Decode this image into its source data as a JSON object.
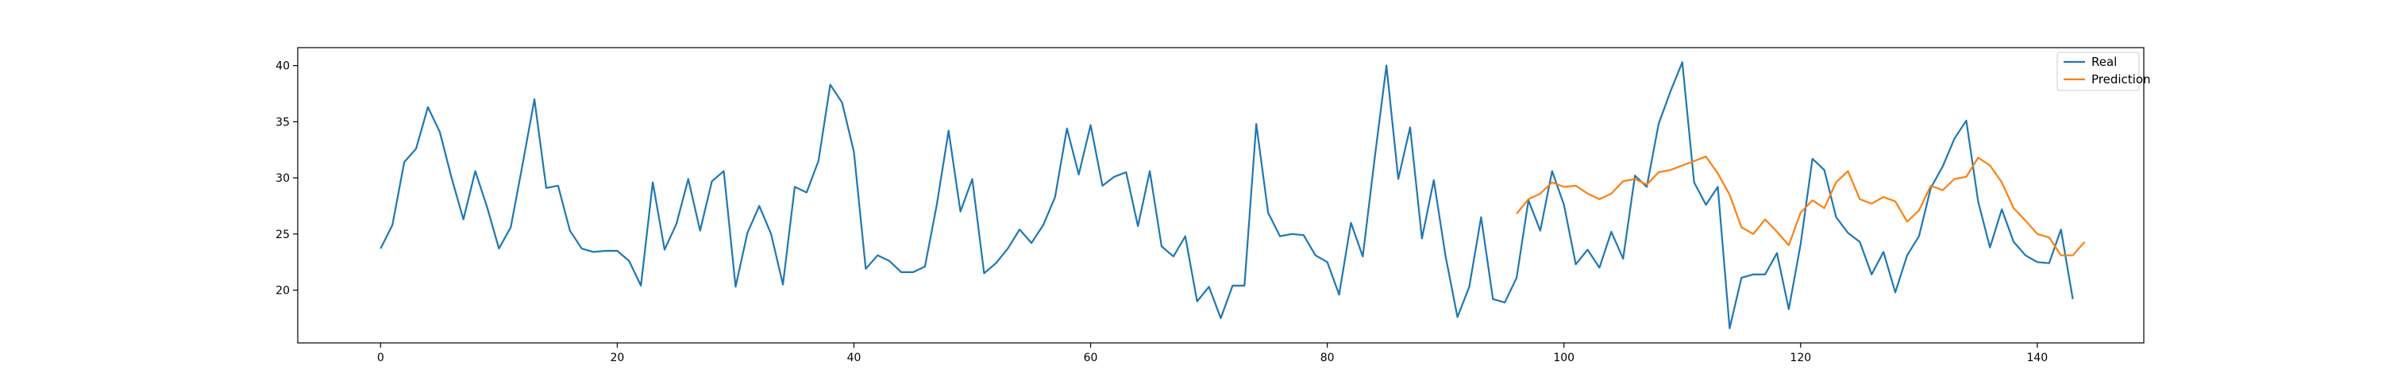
{
  "chart_data": {
    "type": "line",
    "title": "",
    "xlabel": "",
    "ylabel": "",
    "xlim": [
      -7,
      149
    ],
    "ylim": [
      15.3,
      41.6
    ],
    "xticks": [
      0,
      20,
      40,
      60,
      80,
      100,
      120,
      140
    ],
    "yticks": [
      20,
      25,
      30,
      35,
      40
    ],
    "grid": false,
    "legend": {
      "placement": "top-right",
      "entries": [
        "Real",
        "Prediction"
      ]
    },
    "series": [
      {
        "name": "Real",
        "color": "#1f77b4",
        "x_start": 0,
        "values": [
          23.7,
          25.8,
          31.4,
          32.6,
          36.3,
          34.1,
          30.0,
          26.3,
          30.6,
          27.4,
          23.7,
          25.6,
          31.2,
          37.0,
          29.1,
          29.3,
          25.3,
          23.7,
          23.4,
          23.5,
          23.5,
          22.6,
          20.4,
          29.6,
          23.6,
          25.9,
          29.9,
          25.3,
          29.7,
          30.6,
          20.3,
          25.1,
          27.5,
          25.0,
          20.5,
          29.2,
          28.7,
          31.5,
          38.3,
          36.7,
          32.3,
          21.9,
          23.1,
          22.6,
          21.6,
          21.6,
          22.1,
          27.6,
          34.2,
          27.0,
          29.9,
          21.5,
          22.4,
          23.7,
          25.4,
          24.2,
          25.8,
          28.3,
          34.4,
          30.3,
          34.7,
          29.3,
          30.1,
          30.5,
          25.7,
          30.6,
          23.9,
          23.0,
          24.8,
          19.0,
          20.3,
          17.5,
          20.4,
          20.4,
          34.8,
          26.9,
          24.8,
          25.0,
          24.9,
          23.1,
          22.5,
          19.6,
          26.0,
          23.0,
          31.7,
          40.0,
          29.9,
          34.5,
          24.6,
          29.8,
          23.0,
          17.6,
          20.3,
          26.5,
          19.2,
          18.9,
          21.1,
          28.0,
          25.3,
          30.6,
          27.6,
          22.3,
          23.6,
          22.0,
          25.2,
          22.8,
          30.2,
          29.2,
          34.8,
          37.7,
          40.3,
          29.6,
          27.6,
          29.2,
          16.6,
          21.1,
          21.4,
          21.4,
          23.3,
          18.3,
          24.1,
          31.7,
          30.7,
          26.5,
          25.1,
          24.3,
          21.4,
          23.4,
          19.8,
          23.1,
          24.8,
          29.1,
          31.0,
          33.5,
          35.1,
          27.9,
          23.8,
          27.2,
          24.3,
          23.1,
          22.5,
          22.4,
          25.4,
          19.2
        ]
      },
      {
        "name": "Prediction",
        "color": "#ff7f0e",
        "x_start": 96,
        "values": [
          26.8,
          28.1,
          28.6,
          29.6,
          29.2,
          29.3,
          28.6,
          28.1,
          28.6,
          29.7,
          29.9,
          29.4,
          30.5,
          30.7,
          31.1,
          31.5,
          31.9,
          30.4,
          28.5,
          25.6,
          25.0,
          26.3,
          25.2,
          24.0,
          26.9,
          28.0,
          27.3,
          29.6,
          30.6,
          28.1,
          27.7,
          28.3,
          27.9,
          26.1,
          27.1,
          29.3,
          28.9,
          29.9,
          30.1,
          31.8,
          31.1,
          29.6,
          27.3,
          26.2,
          25.0,
          24.7,
          23.1,
          23.1,
          24.3
        ]
      }
    ]
  }
}
